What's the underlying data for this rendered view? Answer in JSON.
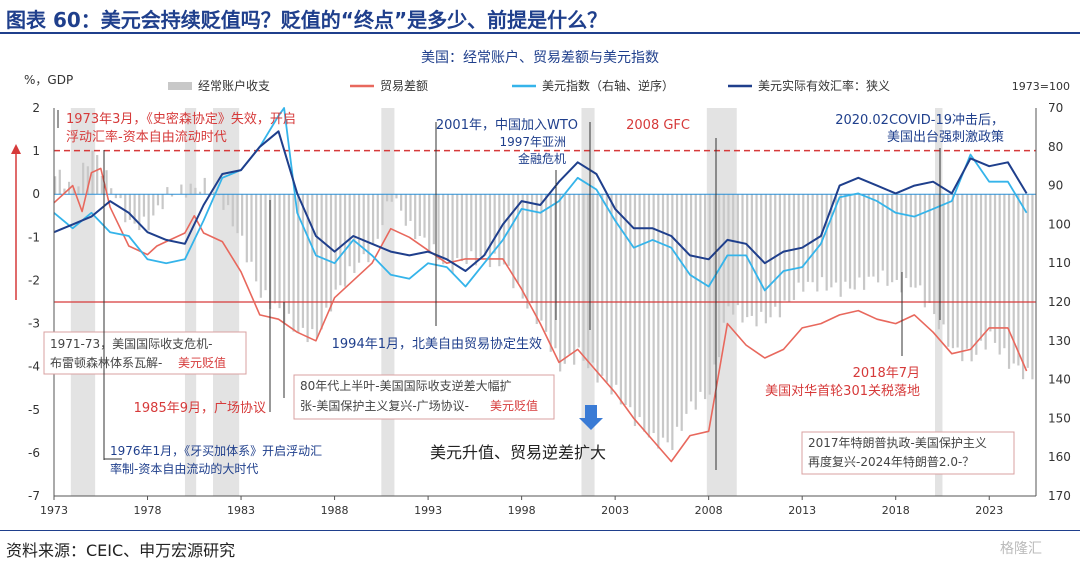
{
  "header": {
    "title": "图表 60：美元会持续贬值吗？贬值的“终点”是多少、前提是什么？"
  },
  "footer": {
    "source": "资料来源：CEIC、申万宏源研究",
    "watermark": "格隆汇"
  },
  "chart_data": {
    "type": "line",
    "title": "美国：经常账户、贸易差额与美元指数",
    "left_unit": "%，GDP",
    "right_note": "1973=100",
    "y_left": {
      "min": -7,
      "max": 2,
      "ticks": [
        "2",
        "1",
        "0",
        "-1",
        "-2",
        "-3",
        "-4",
        "-5",
        "-6",
        "-7"
      ]
    },
    "y_right": {
      "min": 70,
      "max": 170,
      "inverted": true,
      "ticks": [
        "70",
        "80",
        "90",
        "100",
        "110",
        "120",
        "130",
        "140",
        "150",
        "160",
        "170"
      ]
    },
    "x_range": [
      1973,
      2025.5
    ],
    "x_ticks": [
      "1973",
      "1978",
      "1983",
      "1988",
      "1993",
      "1998",
      "2003",
      "2008",
      "2013",
      "2018",
      "2023"
    ],
    "legend": {
      "current_account": "经常账户收支",
      "trade_balance": "贸易差额",
      "dollar_index": "美元指数（右轴、逆序）",
      "reer": "美元实际有效汇率：狭义"
    },
    "colors": {
      "current_account": "#c8c8c8",
      "recession": "#e3e3e3",
      "trade_balance": "#e8685d",
      "dollar_index": "#35b4ea",
      "reer": "#1f3f8c",
      "ref_line": "#d63a3a",
      "annotation_red": "#d63a3a",
      "annotation_blue": "#1f3f8c"
    },
    "recession_bands": [
      [
        1973.9,
        1975.2
      ],
      [
        1980.0,
        1980.6
      ],
      [
        1981.5,
        1982.9
      ],
      [
        1990.5,
        1991.2
      ],
      [
        2001.2,
        2001.9
      ],
      [
        2007.9,
        2009.5
      ],
      [
        2020.1,
        2020.5
      ]
    ],
    "current_account_annual": [
      [
        1973,
        0.5
      ],
      [
        1974,
        0.1
      ],
      [
        1975,
        1.0
      ],
      [
        1976,
        0.2
      ],
      [
        1977,
        -0.7
      ],
      [
        1978,
        -0.7
      ],
      [
        1979,
        0.0
      ],
      [
        1980,
        0.1
      ],
      [
        1981,
        0.2
      ],
      [
        1982,
        -0.2
      ],
      [
        1983,
        -1.1
      ],
      [
        1984,
        -2.3
      ],
      [
        1985,
        -2.7
      ],
      [
        1986,
        -3.2
      ],
      [
        1987,
        -3.3
      ],
      [
        1988,
        -2.3
      ],
      [
        1989,
        -1.7
      ],
      [
        1990,
        -1.3
      ],
      [
        1991,
        0.0
      ],
      [
        1992,
        -0.8
      ],
      [
        1993,
        -1.2
      ],
      [
        1994,
        -1.7
      ],
      [
        1995,
        -1.5
      ],
      [
        1996,
        -1.5
      ],
      [
        1997,
        -1.6
      ],
      [
        1998,
        -2.4
      ],
      [
        1999,
        -3.0
      ],
      [
        2000,
        -4.0
      ],
      [
        2001,
        -3.7
      ],
      [
        2002,
        -4.2
      ],
      [
        2003,
        -4.6
      ],
      [
        2004,
        -5.2
      ],
      [
        2005,
        -5.7
      ],
      [
        2006,
        -5.8
      ],
      [
        2007,
        -4.9
      ],
      [
        2008,
        -4.6
      ],
      [
        2009,
        -2.6
      ],
      [
        2010,
        -2.9
      ],
      [
        2011,
        -2.9
      ],
      [
        2012,
        -2.6
      ],
      [
        2013,
        -2.1
      ],
      [
        2014,
        -2.1
      ],
      [
        2015,
        -2.2
      ],
      [
        2016,
        -2.1
      ],
      [
        2017,
        -1.9
      ],
      [
        2018,
        -2.1
      ],
      [
        2019,
        -2.1
      ],
      [
        2020,
        -2.8
      ],
      [
        2021,
        -3.6
      ],
      [
        2022,
        -3.8
      ],
      [
        2023,
        -3.3
      ],
      [
        2024,
        -3.9
      ],
      [
        2025,
        -4.2
      ]
    ],
    "trade_balance": [
      [
        1973,
        -0.2
      ],
      [
        1974,
        0.2
      ],
      [
        1974.5,
        -0.4
      ],
      [
        1975,
        0.5
      ],
      [
        1975.5,
        0.6
      ],
      [
        1976,
        -0.3
      ],
      [
        1977,
        -1.2
      ],
      [
        1978,
        -1.4
      ],
      [
        1978.5,
        -1.2
      ],
      [
        1979,
        -1.1
      ],
      [
        1980,
        -0.9
      ],
      [
        1980.5,
        -0.5
      ],
      [
        1981,
        -0.9
      ],
      [
        1982,
        -1.1
      ],
      [
        1983,
        -1.8
      ],
      [
        1984,
        -2.8
      ],
      [
        1985,
        -2.9
      ],
      [
        1986,
        -3.2
      ],
      [
        1987,
        -3.4
      ],
      [
        1988,
        -2.4
      ],
      [
        1989,
        -2.0
      ],
      [
        1990,
        -1.6
      ],
      [
        1991,
        -0.8
      ],
      [
        1992,
        -1.0
      ],
      [
        1993,
        -1.3
      ],
      [
        1994,
        -1.6
      ],
      [
        1995,
        -1.5
      ],
      [
        1996,
        -1.5
      ],
      [
        1997,
        -1.5
      ],
      [
        1998,
        -2.2
      ],
      [
        1999,
        -3.0
      ],
      [
        2000,
        -3.9
      ],
      [
        2001,
        -3.6
      ],
      [
        2002,
        -4.1
      ],
      [
        2003,
        -4.6
      ],
      [
        2004,
        -5.2
      ],
      [
        2005,
        -5.7
      ],
      [
        2006,
        -6.2
      ],
      [
        2007,
        -5.6
      ],
      [
        2008,
        -5.5
      ],
      [
        2009,
        -3.0
      ],
      [
        2010,
        -3.5
      ],
      [
        2011,
        -3.8
      ],
      [
        2012,
        -3.6
      ],
      [
        2013,
        -3.1
      ],
      [
        2014,
        -3.0
      ],
      [
        2015,
        -2.8
      ],
      [
        2016,
        -2.7
      ],
      [
        2017,
        -2.9
      ],
      [
        2018,
        -3.0
      ],
      [
        2019,
        -2.8
      ],
      [
        2020,
        -3.2
      ],
      [
        2021,
        -3.7
      ],
      [
        2022,
        -3.6
      ],
      [
        2023,
        -3.1
      ],
      [
        2024,
        -3.1
      ],
      [
        2025,
        -4.1
      ]
    ],
    "dollar_index": [
      [
        1973,
        97
      ],
      [
        1974,
        101
      ],
      [
        1975,
        97
      ],
      [
        1976,
        102
      ],
      [
        1977,
        103
      ],
      [
        1978,
        109
      ],
      [
        1979,
        110
      ],
      [
        1980,
        109
      ],
      [
        1981,
        99
      ],
      [
        1982,
        88
      ],
      [
        1983,
        86
      ],
      [
        1984,
        80
      ],
      [
        1985,
        72
      ],
      [
        1985.3,
        70
      ],
      [
        1986,
        97
      ],
      [
        1987,
        108
      ],
      [
        1988,
        110
      ],
      [
        1989,
        104
      ],
      [
        1990,
        108
      ],
      [
        1991,
        113
      ],
      [
        1992,
        114
      ],
      [
        1993,
        110
      ],
      [
        1994,
        111
      ],
      [
        1995,
        116
      ],
      [
        1996,
        110
      ],
      [
        1997,
        104
      ],
      [
        1998,
        96
      ],
      [
        1999,
        97
      ],
      [
        2000,
        94
      ],
      [
        2001,
        88
      ],
      [
        2002,
        91
      ],
      [
        2003,
        99
      ],
      [
        2004,
        106
      ],
      [
        2005,
        104
      ],
      [
        2006,
        106
      ],
      [
        2007,
        113
      ],
      [
        2008,
        116
      ],
      [
        2009,
        108
      ],
      [
        2010,
        108
      ],
      [
        2011,
        117
      ],
      [
        2012,
        112
      ],
      [
        2013,
        111
      ],
      [
        2014,
        105
      ],
      [
        2015,
        93
      ],
      [
        2016,
        92
      ],
      [
        2017,
        94
      ],
      [
        2018,
        97
      ],
      [
        2019,
        98
      ],
      [
        2020,
        96
      ],
      [
        2021,
        94
      ],
      [
        2022,
        82
      ],
      [
        2023,
        89
      ],
      [
        2024,
        89
      ],
      [
        2025,
        97
      ]
    ],
    "reer": [
      [
        1973,
        102
      ],
      [
        1974,
        100
      ],
      [
        1975,
        98
      ],
      [
        1976,
        94
      ],
      [
        1977,
        97
      ],
      [
        1978,
        102
      ],
      [
        1979,
        104
      ],
      [
        1980,
        105
      ],
      [
        1981,
        95
      ],
      [
        1982,
        87
      ],
      [
        1983,
        86
      ],
      [
        1984,
        80
      ],
      [
        1985,
        76
      ],
      [
        1986,
        92
      ],
      [
        1987,
        103
      ],
      [
        1988,
        107
      ],
      [
        1989,
        103
      ],
      [
        1990,
        105
      ],
      [
        1991,
        107
      ],
      [
        1992,
        108
      ],
      [
        1993,
        107
      ],
      [
        1994,
        109
      ],
      [
        1995,
        112
      ],
      [
        1996,
        108
      ],
      [
        1997,
        100
      ],
      [
        1998,
        94
      ],
      [
        1999,
        95
      ],
      [
        2000,
        89
      ],
      [
        2001,
        84
      ],
      [
        2002,
        87
      ],
      [
        2003,
        96
      ],
      [
        2004,
        101
      ],
      [
        2005,
        101
      ],
      [
        2006,
        103
      ],
      [
        2007,
        108
      ],
      [
        2008,
        109
      ],
      [
        2009,
        104
      ],
      [
        2010,
        105
      ],
      [
        2011,
        110
      ],
      [
        2012,
        107
      ],
      [
        2013,
        106
      ],
      [
        2014,
        103
      ],
      [
        2015,
        90
      ],
      [
        2016,
        88
      ],
      [
        2017,
        90
      ],
      [
        2018,
        92
      ],
      [
        2019,
        90
      ],
      [
        2020,
        89
      ],
      [
        2021,
        92
      ],
      [
        2022,
        83
      ],
      [
        2023,
        85
      ],
      [
        2024,
        84
      ],
      [
        2025,
        92
      ]
    ],
    "ref_lines": {
      "left_y": -2.5,
      "right_y": 81
    },
    "annotations": [
      {
        "text": "1973年3月，《史密森协定》失效，开启",
        "color": "red"
      },
      {
        "text": "浮动汇率-资本自由流动时代",
        "color": "red"
      },
      {
        "text": "2001年，中国加入WTO",
        "color": "blue"
      },
      {
        "text": "1997年亚洲",
        "color": "blue"
      },
      {
        "text": "金融危机",
        "color": "blue"
      },
      {
        "text": "2008 GFC",
        "color": "red"
      },
      {
        "text": "2020.02COVID-19冲击后，",
        "color": "blue"
      },
      {
        "text": "美国出台强刺激政策",
        "color": "blue"
      },
      {
        "text": "1971-73，美国国际收支危机-",
        "color": "gray"
      },
      {
        "text": "布雷顿森林体系瓦解-",
        "color": "gray"
      },
      {
        "text": "美元贬值",
        "color": "red"
      },
      {
        "text": "1994年1月，北美自由贸易协定生效",
        "color": "blue"
      },
      {
        "text": "80年代上半叶-美国国际收支逆差大幅扩",
        "color": "gray"
      },
      {
        "text": "张-美国保护主义复兴-广场协议-",
        "color": "gray"
      },
      {
        "text": "美元贬值",
        "color": "red"
      },
      {
        "text": "1985年9月，广场协议",
        "color": "red"
      },
      {
        "text": "2018年7月",
        "color": "red"
      },
      {
        "text": "美国对华首轮301关税落地",
        "color": "red"
      },
      {
        "text": "1976年1月，《牙买加体系》开启浮动汇",
        "color": "blue"
      },
      {
        "text": "率制-资本自由流动的大时代",
        "color": "blue"
      },
      {
        "text": "美元升值、贸易逆差扩大",
        "color": "dark"
      },
      {
        "text": "2017年特朗普执政-美国保护主义",
        "color": "gray"
      },
      {
        "text": "再度复兴-2024年特朗普2.0-？",
        "color": "gray"
      }
    ]
  }
}
